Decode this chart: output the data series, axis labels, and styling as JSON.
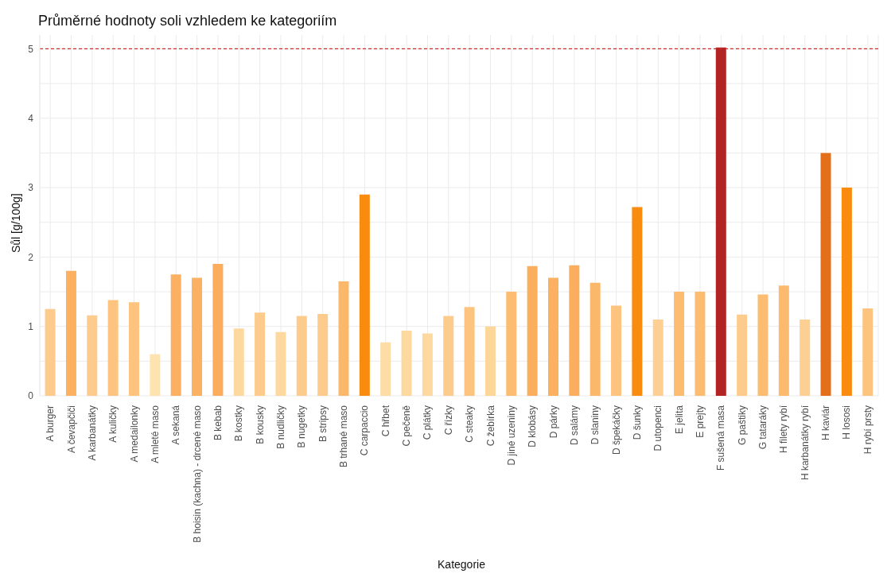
{
  "chart_data": {
    "type": "bar",
    "title": "Průměrné hodnoty soli vzhledem ke kategoriím",
    "xlabel": "Kategorie",
    "ylabel": "Sůl [g/100g]",
    "categories": [
      "A burger",
      "A čevapčiči",
      "A karbanátky",
      "A kuličky",
      "A medailonky",
      "A mleté maso",
      "A sekaná",
      "B hoisin (kachna) - drcené maso",
      "B kebab",
      "B kostky",
      "B kousky",
      "B nudličky",
      "B nugetky",
      "B stripsy",
      "B trhané maso",
      "C carpaccio",
      "C hřbet",
      "C pečeně",
      "C plátky",
      "C řízky",
      "C steaky",
      "C žebírka",
      "D jiné uzeniny",
      "D klobásy",
      "D párky",
      "D salámy",
      "D slaniny",
      "D špekáčky",
      "D šunky",
      "D utopenci",
      "E jelita",
      "E prejty",
      "F sušená masa",
      "G paštiky",
      "G tataráky",
      "H filety rybí",
      "H karbanátky rybí",
      "H kaviár",
      "H lososi",
      "H rybí prsty"
    ],
    "values": [
      1.25,
      1.8,
      1.16,
      1.38,
      1.35,
      0.6,
      1.75,
      1.7,
      1.9,
      0.97,
      1.2,
      0.92,
      1.15,
      1.18,
      1.65,
      2.9,
      0.77,
      0.94,
      0.9,
      1.15,
      1.28,
      1.0,
      1.5,
      1.87,
      1.7,
      1.88,
      1.63,
      1.3,
      2.72,
      1.1,
      1.5,
      1.5,
      5.02,
      1.17,
      1.46,
      1.59,
      1.1,
      3.5,
      3.0,
      1.26
    ],
    "colors": [
      "#fdcb8c",
      "#fbb062",
      "#fdcb8c",
      "#fdc480",
      "#fdc480",
      "#fde3b0",
      "#fbb062",
      "#fbb062",
      "#fbac5c",
      "#fdd9a0",
      "#fdcb8c",
      "#fdd9a0",
      "#fdcb8c",
      "#fdcb8c",
      "#fcb86a",
      "#f98c0e",
      "#fddca6",
      "#fdd9a0",
      "#fdd9a0",
      "#fdcb8c",
      "#fdc480",
      "#fdd69a",
      "#fcbd72",
      "#fbae5e",
      "#fbb062",
      "#fbae5e",
      "#fcb86a",
      "#fdc480",
      "#f98c0e",
      "#fdcf92",
      "#fcbd72",
      "#fcbd72",
      "#b22323",
      "#fdcb8c",
      "#fcbd72",
      "#fcba6e",
      "#fdcf92",
      "#e36f1a",
      "#f98c0e",
      "#fdc480"
    ],
    "ylim": [
      0,
      5.2
    ],
    "yticks": [
      0,
      1,
      2,
      3,
      4,
      5
    ],
    "grid": true,
    "ref_lines": [
      {
        "axis": "y",
        "value": 5,
        "color": "#cc2b2b",
        "line_style": "dashed"
      }
    ]
  }
}
